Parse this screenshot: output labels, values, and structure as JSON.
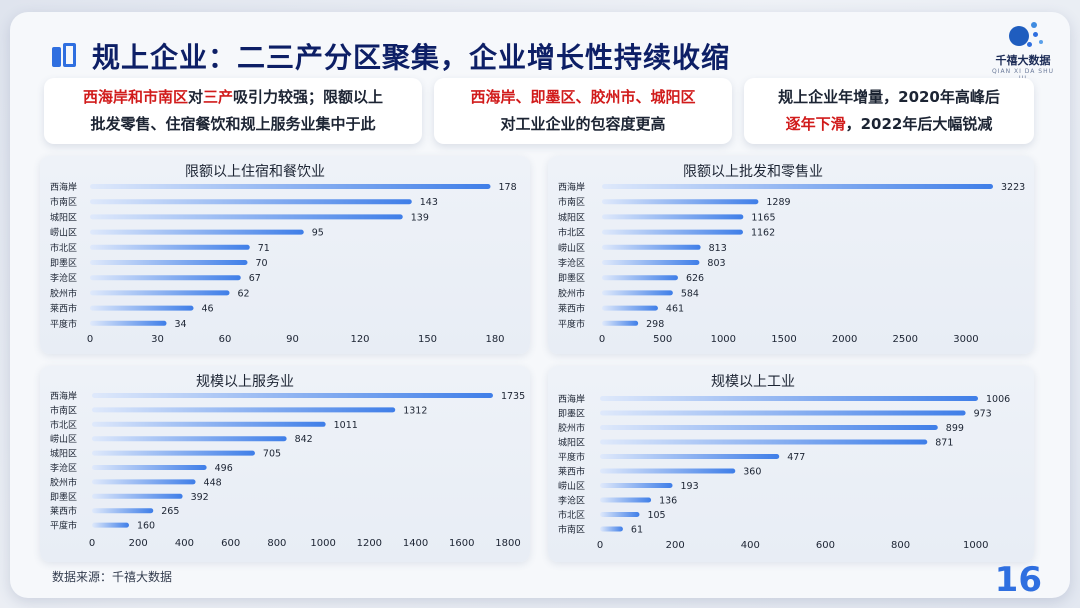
{
  "title": "规上企业：二三产分区聚集，企业增长性持续收缩",
  "logo": {
    "name": "千禧大数据",
    "sub": "QIAN XI DA SHU JU"
  },
  "callouts": [
    {
      "lines": [
        [
          {
            "text": "西海岸和市南区",
            "red": true
          },
          {
            "text": "对",
            "red": false
          },
          {
            "text": "三产",
            "red": true
          },
          {
            "text": "吸引力较强；限额以上",
            "red": false
          }
        ],
        [
          {
            "text": "批发零售、住宿餐饮和规上服务业集中于此",
            "red": false
          }
        ]
      ]
    },
    {
      "lines": [
        [
          {
            "text": "西海岸、即墨区、胶州市、城阳区",
            "red": true
          }
        ],
        [
          {
            "text": "对工业企业的包容度更高",
            "red": false
          }
        ]
      ]
    },
    {
      "lines": [
        [
          {
            "text": "规上企业年增量，2020年高峰后",
            "red": false
          }
        ],
        [
          {
            "text": "逐年下滑",
            "red": true
          },
          {
            "text": "，2022年后大幅锐减",
            "red": false
          }
        ]
      ]
    }
  ],
  "chart_data": [
    {
      "type": "bar",
      "orientation": "horizontal",
      "title": "限额以上住宿和餐饮业",
      "categories": [
        "西海岸",
        "市南区",
        "城阳区",
        "崂山区",
        "市北区",
        "即墨区",
        "李沧区",
        "胶州市",
        "莱西市",
        "平度市"
      ],
      "values": [
        178,
        143,
        139,
        95,
        71,
        70,
        67,
        62,
        46,
        34
      ],
      "xlim": [
        0,
        180
      ],
      "ticks": [
        0,
        30,
        60,
        90,
        120,
        150,
        180
      ]
    },
    {
      "type": "bar",
      "orientation": "horizontal",
      "title": "限额以上批发和零售业",
      "categories": [
        "西海岸",
        "市南区",
        "城阳区",
        "市北区",
        "崂山区",
        "李沧区",
        "即墨区",
        "胶州市",
        "莱西市",
        "平度市"
      ],
      "values": [
        3223,
        1289,
        1165,
        1162,
        813,
        803,
        626,
        584,
        461,
        298
      ],
      "xlim": [
        0,
        3223
      ],
      "ticks": [
        0,
        500,
        1000,
        1500,
        2000,
        2500,
        3000
      ]
    },
    {
      "type": "bar",
      "orientation": "horizontal",
      "title": "规模以上服务业",
      "categories": [
        "西海岸",
        "市南区",
        "市北区",
        "崂山区",
        "城阳区",
        "李沧区",
        "胶州市",
        "即墨区",
        "莱西市",
        "平度市"
      ],
      "values": [
        1735,
        1312,
        1011,
        842,
        705,
        496,
        448,
        392,
        265,
        160
      ],
      "xlim": [
        0,
        1800
      ],
      "ticks": [
        0,
        200,
        400,
        600,
        800,
        1000,
        1200,
        1400,
        1600,
        1800
      ]
    },
    {
      "type": "bar",
      "orientation": "horizontal",
      "title": "规模以上工业",
      "categories": [
        "西海岸",
        "即墨区",
        "胶州市",
        "城阳区",
        "平度市",
        "莱西市",
        "崂山区",
        "李沧区",
        "市北区",
        "市南区"
      ],
      "values": [
        1006,
        973,
        899,
        871,
        477,
        360,
        193,
        136,
        105,
        61
      ],
      "xlim": [
        0,
        1006
      ],
      "ticks": [
        0,
        200,
        400,
        600,
        800,
        1000
      ]
    }
  ],
  "source": "数据来源：千禧大数据",
  "page_number": "16",
  "colors": {
    "bar_start": "#dfe9fb",
    "bar_end": "#3f7ee8",
    "red": "#d11b1b",
    "title": "#0d1f66"
  }
}
